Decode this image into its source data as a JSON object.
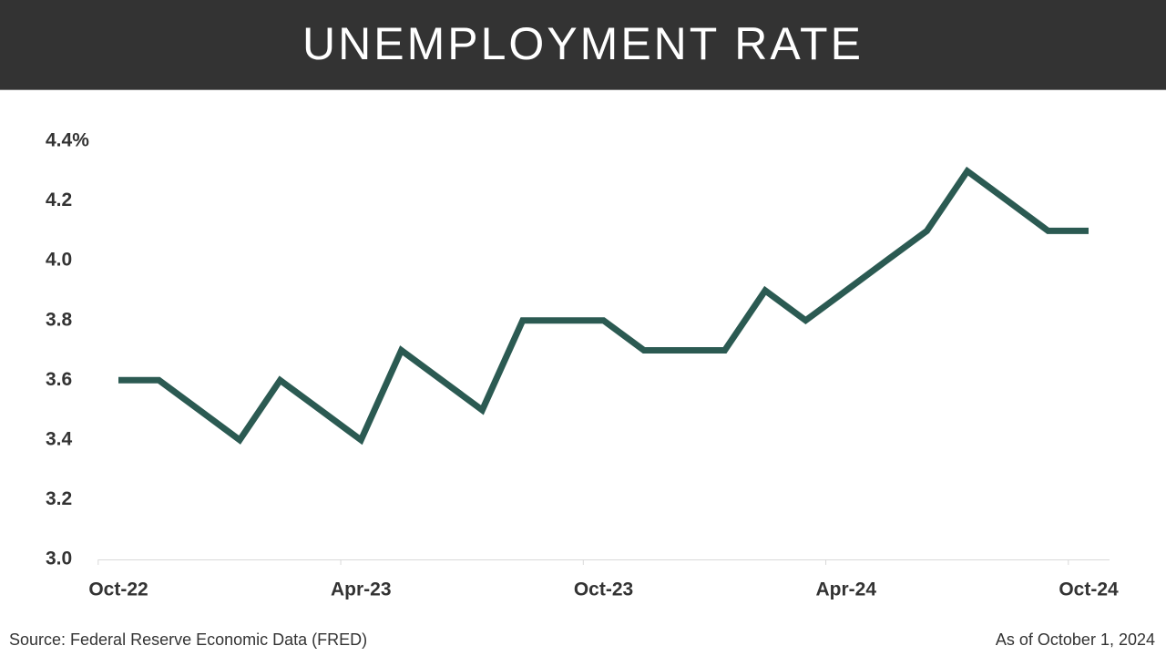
{
  "chart_data": {
    "type": "line",
    "title": "UNEMPLOYMENT RATE",
    "categories": [
      "Oct-22",
      null,
      null,
      null,
      null,
      null,
      "Apr-23",
      null,
      null,
      null,
      null,
      null,
      "Oct-23",
      null,
      null,
      null,
      null,
      null,
      "Apr-24",
      null,
      null,
      null,
      null,
      null,
      "Oct-24"
    ],
    "series": [
      {
        "name": "Unemployment rate",
        "color": "#2b5a52",
        "values": [
          3.6,
          3.6,
          3.5,
          3.4,
          3.6,
          3.5,
          3.4,
          3.7,
          3.6,
          3.5,
          3.8,
          3.8,
          3.8,
          3.7,
          3.7,
          3.7,
          3.9,
          3.8,
          3.9,
          4.0,
          4.1,
          4.3,
          4.2,
          4.1,
          4.1
        ]
      }
    ],
    "ylim": [
      3,
      4.4
    ],
    "yticks": [
      {
        "value": 3,
        "label": "3.0"
      },
      3.2,
      3.4,
      3.6,
      3.8,
      {
        "value": 4,
        "label": "4.0"
      },
      4.2,
      {
        "value": 4.4,
        "label": "4.4%"
      }
    ],
    "grid": false,
    "source": "Source: Federal Reserve Economic Data (FRED)",
    "date_note": "As of October 1, 2024"
  }
}
